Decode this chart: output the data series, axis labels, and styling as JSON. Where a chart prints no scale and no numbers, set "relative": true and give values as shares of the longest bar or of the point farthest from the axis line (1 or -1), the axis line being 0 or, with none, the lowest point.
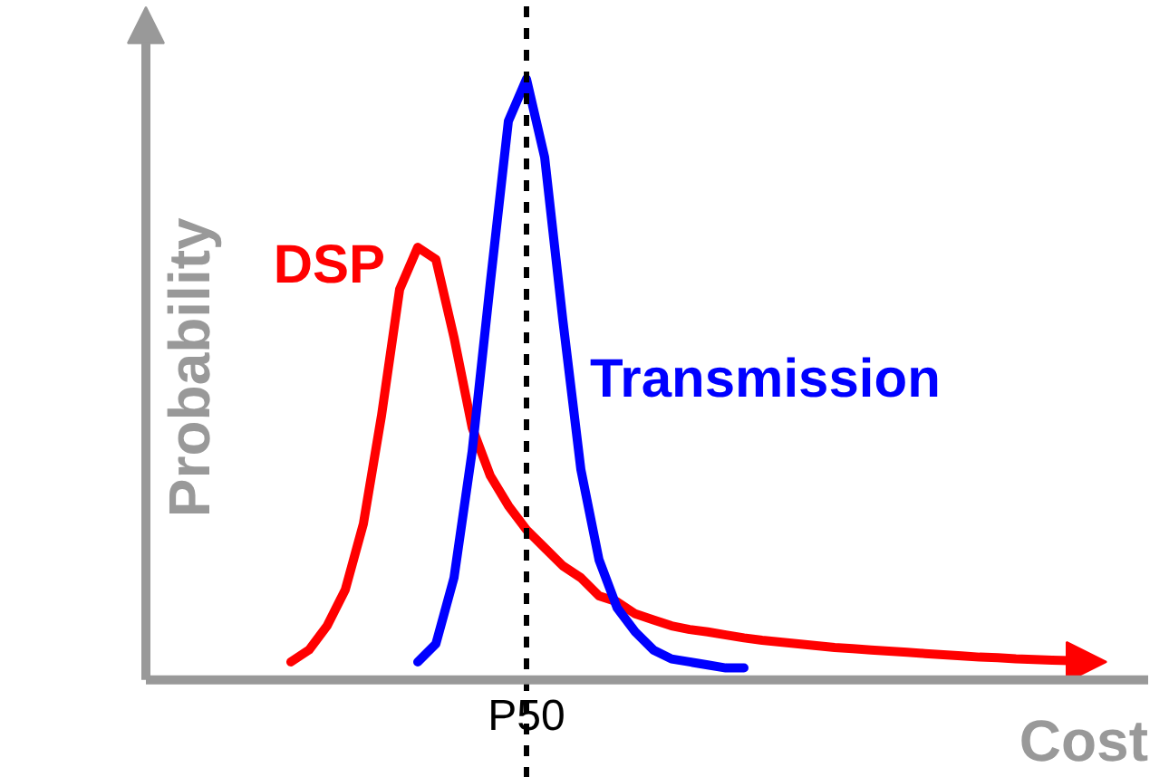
{
  "chart_data": {
    "type": "line",
    "relative": true,
    "xlabel": "Cost",
    "ylabel": "Probability",
    "categories": [
      null,
      null,
      null,
      null,
      null,
      null,
      null,
      null,
      null,
      null,
      null,
      null,
      null,
      null,
      null,
      null,
      null,
      null,
      null,
      null,
      null,
      null,
      null,
      null,
      null,
      null,
      null,
      null,
      null,
      null,
      null,
      null,
      null,
      null,
      null,
      null,
      null,
      null,
      null,
      null,
      null,
      null,
      null,
      null,
      null
    ],
    "series": [
      {
        "name": "DSP",
        "color": "#ff0000",
        "values": [
          0.03,
          0.05,
          0.09,
          0.15,
          0.26,
          0.44,
          0.65,
          0.72,
          0.7,
          0.57,
          0.42,
          0.34,
          0.29,
          0.25,
          0.22,
          0.19,
          0.17,
          0.14,
          0.13,
          0.11,
          0.1,
          0.09,
          0.084,
          0.08,
          0.075,
          0.07,
          0.066,
          0.063,
          0.06,
          0.057,
          0.054,
          0.052,
          0.05,
          0.048,
          0.046,
          0.044,
          0.042,
          0.04,
          0.038,
          0.037,
          0.035,
          0.034,
          0.033,
          0.032,
          0.03
        ]
      },
      {
        "name": "Transmission",
        "color": "#0000ff",
        "values": [
          null,
          null,
          null,
          null,
          null,
          null,
          null,
          0.03,
          0.06,
          0.17,
          0.38,
          0.66,
          0.93,
          1.0,
          0.87,
          0.6,
          0.35,
          0.2,
          0.12,
          0.08,
          0.05,
          0.035,
          0.03,
          0.025,
          0.02,
          0.02,
          null,
          null,
          null,
          null,
          null,
          null,
          null,
          null,
          null,
          null,
          null,
          null,
          null,
          null,
          null,
          null,
          null,
          null,
          null
        ]
      }
    ],
    "annotations": [
      "P50"
    ],
    "grid": false,
    "line_style": "solid",
    "marker": "none"
  }
}
